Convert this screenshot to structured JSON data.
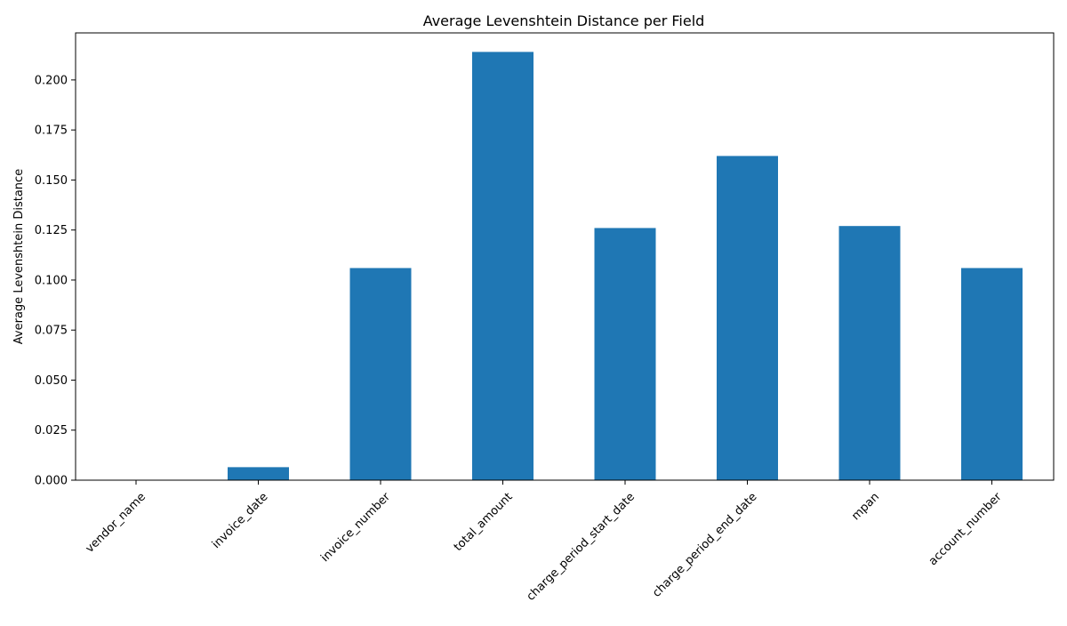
{
  "chart_data": {
    "type": "bar",
    "title": "Average Levenshtein Distance per Field",
    "xlabel": "",
    "ylabel": "Average Levenshtein Distance",
    "categories": [
      "vendor_name",
      "invoice_date",
      "invoice_number",
      "total_amount",
      "charge_period_start_date",
      "charge_period_end_date",
      "mpan",
      "account_number"
    ],
    "values": [
      0.0,
      0.0065,
      0.106,
      0.214,
      0.126,
      0.162,
      0.127,
      0.106
    ],
    "ylim": [
      0,
      0.2235
    ],
    "yticks": [
      "0.000",
      "0.025",
      "0.050",
      "0.075",
      "0.100",
      "0.125",
      "0.150",
      "0.175",
      "0.200"
    ],
    "ytick_values": [
      0,
      0.025,
      0.05,
      0.075,
      0.1,
      0.125,
      0.15,
      0.175,
      0.2
    ],
    "bar_color": "#1f77b4",
    "grid": false,
    "legend": "none"
  }
}
